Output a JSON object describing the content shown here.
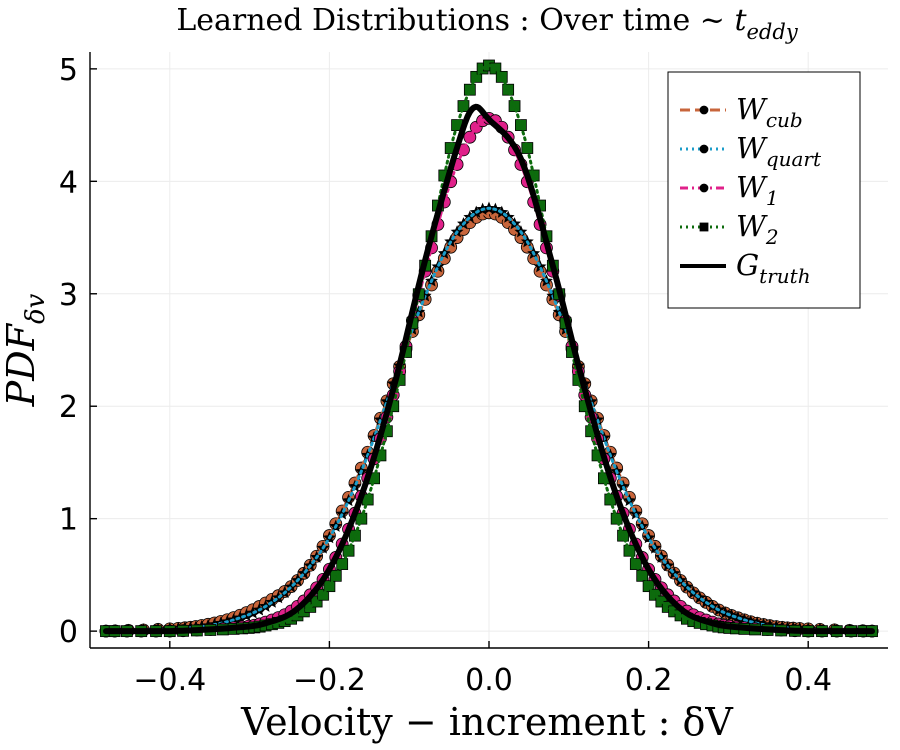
{
  "chart_data": {
    "type": "line",
    "title": "Learned Distributions :  Over time ~ t",
    "title_main": "Learned Distributions :  Over time ~ ",
    "title_var": "t",
    "title_sub": "eddy",
    "xlabel": "Velocity − increment : δV",
    "ylabel_main": "PDF",
    "ylabel_sub": "δv",
    "xlim": [
      -0.5,
      0.5
    ],
    "ylim": [
      -0.15,
      5.15
    ],
    "x_ticks": [
      -0.4,
      -0.2,
      0.0,
      0.2,
      0.4
    ],
    "x_tick_labels": [
      "−0.4",
      "−0.2",
      "0.0",
      "0.2",
      "0.4"
    ],
    "y_ticks": [
      0,
      1,
      2,
      3,
      4,
      5
    ],
    "y_tick_labels": [
      "0",
      "1",
      "2",
      "3",
      "4",
      "5"
    ],
    "grid": true,
    "legend_position": "top-right",
    "series": [
      {
        "name": "W_cub",
        "label_main": "W",
        "label_sub": "cub",
        "color": "#c8653b",
        "marker": "circle",
        "line_style": "dashed",
        "x": [
          -0.48,
          -0.4,
          -0.36,
          -0.32,
          -0.28,
          -0.24,
          -0.2,
          -0.16,
          -0.12,
          -0.08,
          -0.04,
          0.0,
          0.04,
          0.08,
          0.12,
          0.16,
          0.2,
          0.24,
          0.28,
          0.32,
          0.36,
          0.4,
          0.48
        ],
        "y": [
          0.0,
          0.02,
          0.05,
          0.12,
          0.25,
          0.45,
          0.85,
          1.45,
          2.2,
          2.95,
          3.5,
          3.72,
          3.5,
          2.95,
          2.2,
          1.45,
          0.85,
          0.45,
          0.22,
          0.1,
          0.04,
          0.02,
          0.0
        ]
      },
      {
        "name": "W_quart",
        "label_main": "W",
        "label_sub": "quart",
        "color": "#1b9cc9",
        "marker": "star",
        "line_style": "dotted",
        "x": [
          -0.48,
          -0.4,
          -0.36,
          -0.32,
          -0.28,
          -0.24,
          -0.2,
          -0.16,
          -0.12,
          -0.08,
          -0.04,
          0.0,
          0.04,
          0.08,
          0.12,
          0.16,
          0.2,
          0.24,
          0.28,
          0.32,
          0.36,
          0.4,
          0.48
        ],
        "y": [
          0.0,
          0.02,
          0.04,
          0.1,
          0.22,
          0.45,
          0.83,
          1.42,
          2.2,
          2.98,
          3.55,
          3.76,
          3.55,
          2.98,
          2.2,
          1.42,
          0.83,
          0.45,
          0.22,
          0.1,
          0.04,
          0.02,
          0.0
        ]
      },
      {
        "name": "W_1",
        "label_main": "W",
        "label_sub": "1",
        "color": "#e0218a",
        "marker": "circle",
        "line_style": "dash-dot",
        "x": [
          -0.48,
          -0.4,
          -0.32,
          -0.28,
          -0.24,
          -0.2,
          -0.16,
          -0.12,
          -0.08,
          -0.04,
          0.0,
          0.04,
          0.08,
          0.12,
          0.16,
          0.2,
          0.24,
          0.28,
          0.32,
          0.4,
          0.48
        ],
        "y": [
          0.0,
          0.0,
          0.03,
          0.08,
          0.22,
          0.55,
          1.2,
          2.1,
          3.2,
          4.15,
          4.56,
          4.15,
          3.2,
          2.1,
          1.2,
          0.55,
          0.22,
          0.08,
          0.03,
          0.0,
          0.0
        ]
      },
      {
        "name": "W_2",
        "label_main": "W",
        "label_sub": "2",
        "color": "#0d6b0d",
        "marker": "square",
        "line_style": "dotted",
        "x": [
          -0.48,
          -0.4,
          -0.32,
          -0.28,
          -0.24,
          -0.2,
          -0.16,
          -0.12,
          -0.08,
          -0.04,
          0.0,
          0.04,
          0.08,
          0.12,
          0.16,
          0.2,
          0.24,
          0.28,
          0.32,
          0.4,
          0.48
        ],
        "y": [
          0.0,
          0.0,
          0.02,
          0.05,
          0.14,
          0.4,
          1.0,
          2.0,
          3.25,
          4.5,
          5.03,
          4.5,
          3.25,
          2.0,
          1.0,
          0.4,
          0.14,
          0.05,
          0.02,
          0.0,
          0.0
        ]
      },
      {
        "name": "G_truth",
        "label_main": "G",
        "label_sub": "truth",
        "color": "#000000",
        "marker": "none",
        "line_style": "solid",
        "x": [
          -0.48,
          -0.4,
          -0.32,
          -0.28,
          -0.24,
          -0.2,
          -0.16,
          -0.12,
          -0.08,
          -0.04,
          -0.02,
          0.0,
          0.04,
          0.08,
          0.12,
          0.16,
          0.2,
          0.24,
          0.28,
          0.32,
          0.4,
          0.48
        ],
        "y": [
          0.0,
          0.0,
          0.03,
          0.07,
          0.2,
          0.55,
          1.2,
          2.15,
          3.3,
          4.3,
          4.65,
          4.55,
          4.2,
          3.25,
          2.15,
          1.2,
          0.55,
          0.2,
          0.07,
          0.03,
          0.0,
          0.0
        ]
      }
    ]
  }
}
